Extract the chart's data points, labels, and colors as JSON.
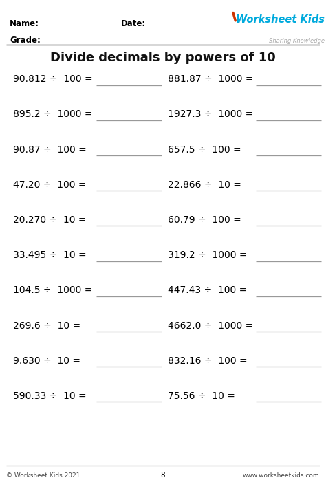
{
  "title": "Divide decimals by powers of 10",
  "left_problems": [
    "90.812 ÷  100 =",
    "895.2 ÷  1000 =",
    "90.87 ÷  100 =",
    "47.20 ÷  100 =",
    "20.270 ÷  10 =",
    "33.495 ÷  10 =",
    "104.5 ÷  1000 =",
    "269.6 ÷  10 =",
    "9.630 ÷  10 =",
    "590.33 ÷  10 ="
  ],
  "right_problems": [
    "881.87 ÷  1000 =",
    "1927.3 ÷  1000 =",
    "657.5 ÷  100 =",
    "22.866 ÷  10 =",
    "60.79 ÷  100 =",
    "319.2 ÷  1000 =",
    "447.43 ÷  100 =",
    "4662.0 ÷  1000 =",
    "832.16 ÷  100 =",
    "75.56 ÷  10 ="
  ],
  "name_label": "Name:",
  "grade_label": "Grade:",
  "date_label": "Date:",
  "footer_left": "© Worksheet Kids 2021",
  "footer_right": "www.worksheetkids.com",
  "footer_center": "8",
  "bg_color": "#ffffff",
  "text_color": "#000000",
  "line_color": "#999999",
  "header_line_color": "#333333",
  "footer_line_color": "#333333",
  "worksheet_title_color": "#111111",
  "logo_text": "Worksheet Kids",
  "logo_sub": "Sharing Knowledge",
  "logo_color": "#00aadd",
  "pencil_color": "#cc3300"
}
